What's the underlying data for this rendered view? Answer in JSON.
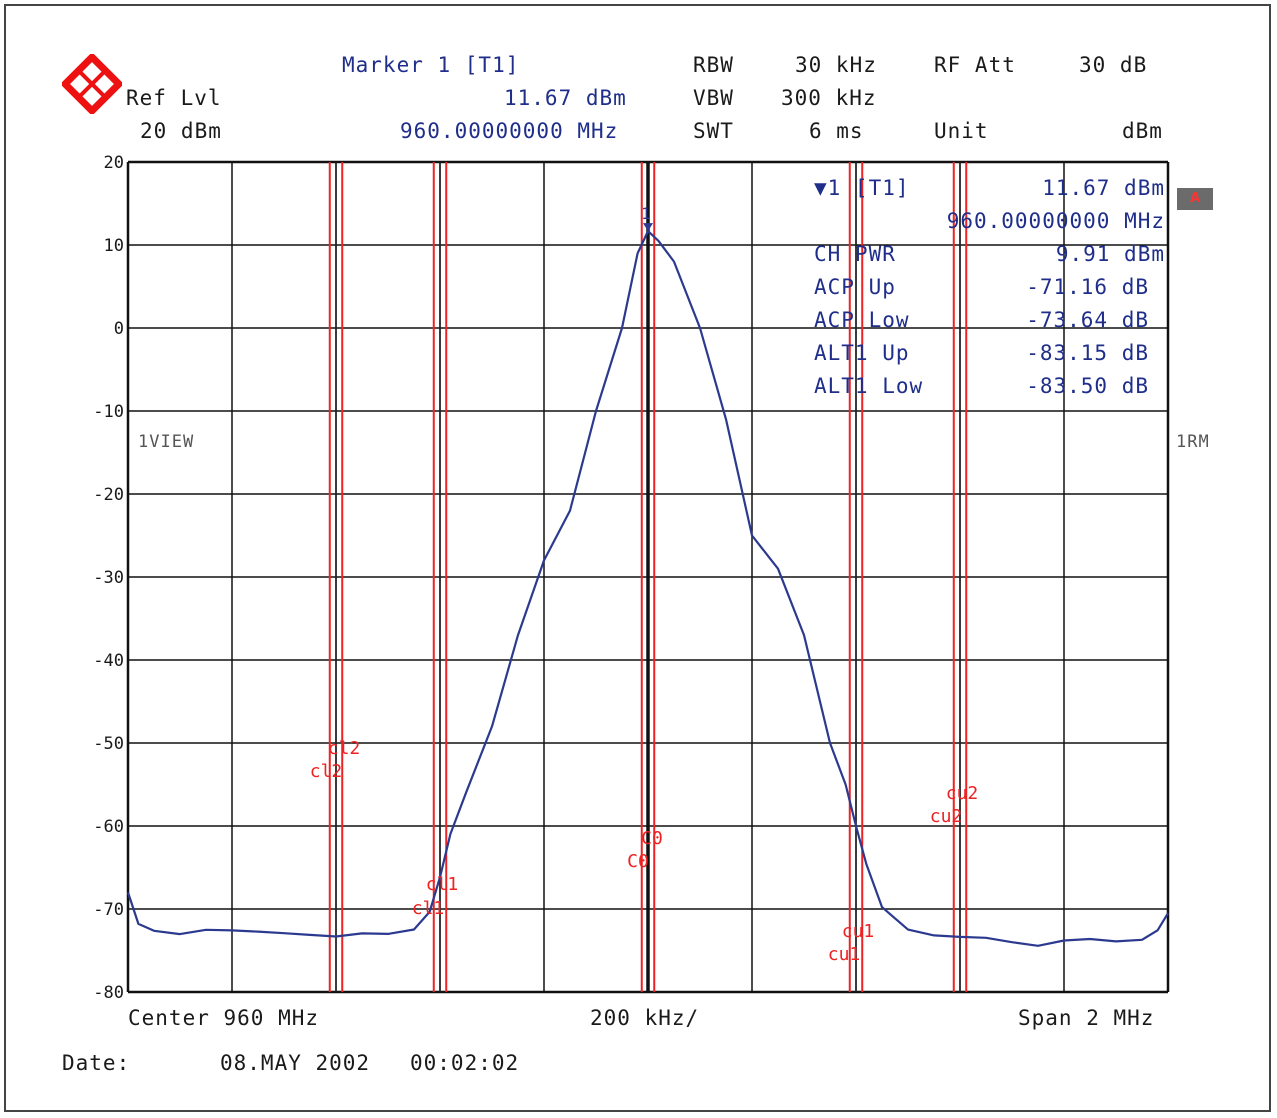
{
  "header": {
    "ref_lvl_label": "Ref Lvl",
    "ref_lvl_value": "20 dBm",
    "marker_title": "Marker 1 [T1]",
    "marker_level": "11.67 dBm",
    "marker_freq": "960.00000000 MHz",
    "rbw_label": "RBW",
    "rbw_value": "30 kHz",
    "vbw_label": "VBW",
    "vbw_value": "300 kHz",
    "swt_label": "SWT",
    "swt_value": "6 ms",
    "rfatt_label": "RF Att",
    "rfatt_value": "30 dB",
    "unit_label": "Unit",
    "unit_value": "dBm"
  },
  "readout": {
    "marker_label": "▼1 [T1]",
    "marker_level": "11.67 dBm",
    "marker_freq": "960.00000000 MHz",
    "rows": [
      {
        "label": "CH PWR",
        "value": "9.91 dBm"
      },
      {
        "label": "ACP Up",
        "value": "-71.16 dB"
      },
      {
        "label": "ACP Low",
        "value": "-73.64 dB"
      },
      {
        "label": "ALT1 Up",
        "value": "-83.15 dB"
      },
      {
        "label": "ALT1 Low",
        "value": "-83.50 dB"
      }
    ]
  },
  "side": {
    "left_label": "1VIEW",
    "right_label": "1RM",
    "badge": "A"
  },
  "footer": {
    "center": "Center 960 MHz",
    "div": "200 kHz/",
    "span": "Span 2 MHz",
    "date_label": "Date:",
    "date_value": "08.MAY 2002",
    "time_value": "00:02:02"
  },
  "colors": {
    "trace": "#2b3a8f",
    "channel_lines": "#ee2222",
    "grid": "#111111",
    "text_blue": "#1f2e8a"
  },
  "chart_data": {
    "type": "line",
    "title": "",
    "xlabel": "",
    "ylabel": "",
    "xlim": [
      959.0,
      961.0
    ],
    "ylim": [
      -80,
      20
    ],
    "yticks": [
      20,
      10,
      0,
      -10,
      -20,
      -30,
      -40,
      -50,
      -60,
      -70,
      -80
    ],
    "grid": true,
    "marker": {
      "label": "1",
      "x": 960.0,
      "y": 11.67
    },
    "channel_lines": [
      {
        "label": "cl2",
        "x": [
          959.388,
          959.412
        ]
      },
      {
        "label": "cl1",
        "x": [
          959.588,
          959.612
        ]
      },
      {
        "label": "C0",
        "x": [
          959.988,
          960.012
        ]
      },
      {
        "label": "cu1",
        "x": [
          960.388,
          960.412
        ]
      },
      {
        "label": "cu2",
        "x": [
          960.588,
          960.612
        ]
      }
    ],
    "series": [
      {
        "name": "",
        "x": [
          959.0,
          959.02,
          959.05,
          959.1,
          959.15,
          959.2,
          959.25,
          959.3,
          959.35,
          959.4,
          959.45,
          959.5,
          959.55,
          959.58,
          959.6,
          959.62,
          959.65,
          959.7,
          959.75,
          959.8,
          959.85,
          959.9,
          959.95,
          959.98,
          960.0,
          960.02,
          960.05,
          960.1,
          960.15,
          960.2,
          960.25,
          960.3,
          960.35,
          960.38,
          960.4,
          960.42,
          960.45,
          960.5,
          960.55,
          960.6,
          960.65,
          960.7,
          960.75,
          960.8,
          960.85,
          960.9,
          960.95,
          960.98,
          961.0
        ],
        "y": [
          -68,
          -72,
          -73,
          -73.5,
          -73,
          -73,
          -73,
          -73,
          -73,
          -73,
          -72.5,
          -72.5,
          -72,
          -70,
          -66,
          -61,
          -56,
          -48,
          -37,
          -28,
          -22,
          -10,
          0,
          9,
          11.67,
          10.5,
          8,
          0,
          -11,
          -25,
          -29,
          -37,
          -50,
          -55,
          -60,
          -65,
          -70,
          -72.5,
          -73,
          -73,
          -73,
          -73.5,
          -74,
          -73.5,
          -73.5,
          -74,
          -74,
          -73,
          -71
        ]
      }
    ]
  }
}
